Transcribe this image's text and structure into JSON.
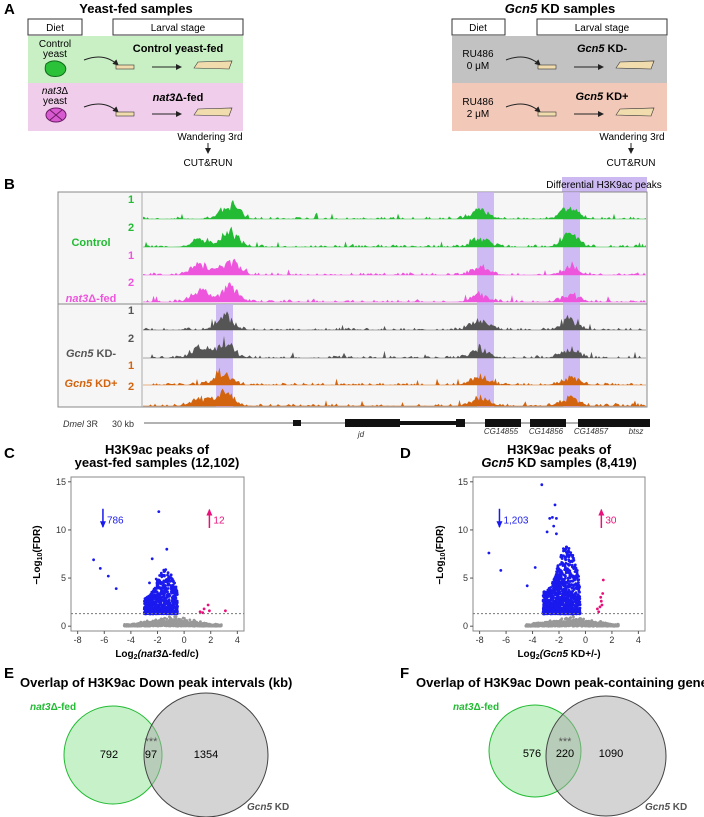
{
  "colors": {
    "control": "#22bb33",
    "nat3": "#ee55dd",
    "kdminus": "#555555",
    "kdplus": "#d2640f",
    "highlight": "#c8b0f2",
    "down": "#1a1aee",
    "up": "#e8107a",
    "ns": "#999999",
    "venn_green": "#bdeec0",
    "venn_gray": "#cccccc"
  },
  "panelA": {
    "letter": "A",
    "left": {
      "title": "Yeast-fed samples",
      "diet": "Diet",
      "stage": "Larval stage",
      "rows": [
        {
          "diet_l1": "Control",
          "diet_l2": "yeast",
          "label": "Control yeast-fed"
        },
        {
          "diet_l1_i": "nat3",
          "diet_l1_d": "Δ",
          "diet_l2": "yeast",
          "label_i": "nat3",
          "label_rest": "Δ-fed"
        }
      ],
      "wandering": "Wandering 3rd",
      "cutrun": "CUT&RUN"
    },
    "right": {
      "title_i": "Gcn5",
      "title_rest": " KD samples",
      "diet": "Diet",
      "stage": "Larval stage",
      "rows": [
        {
          "diet_l1": "RU486",
          "diet_l2": "0 μM",
          "label_i": "Gcn5",
          "label_rest": " KD-"
        },
        {
          "diet_l1": "RU486",
          "diet_l2": "2 μM",
          "label_i": "Gcn5",
          "label_rest": " KD+"
        }
      ],
      "wandering": "Wandering 3rd",
      "cutrun": "CUT&RUN"
    }
  },
  "panelB": {
    "letter": "B",
    "diff_label": "Differential H3K9ac peaks",
    "groups": [
      {
        "name": "Control"
      },
      {
        "name_i": "nat3",
        "name_rest": "Δ-fed"
      },
      {
        "name_i": "Gcn5",
        "name_rest": " KD-"
      },
      {
        "name_i": "Gcn5",
        "name_rest": " KD+"
      }
    ],
    "replicates": [
      "1",
      "2"
    ],
    "chrom_i": "Dmel",
    "chrom_rest": " 3R",
    "scale": "30 kb",
    "genes": [
      "jd",
      "CG14855",
      "CG14856",
      "CG14857",
      "btsz"
    ]
  },
  "chart_data": [
    {
      "type": "scatter",
      "letter": "C",
      "title_l1": "H3K9ac peaks of",
      "title_l2": "yeast-fed samples (12,102)",
      "xlabel_pre": "Log",
      "xlabel_sub": "2",
      "xlabel_i": "(nat3",
      "xlabel_rest": "Δ-fed/c)",
      "ylabel": "−Log10(FDR)",
      "xlim": [
        -8.5,
        4.5
      ],
      "ylim": [
        -0.5,
        15.5
      ],
      "xticks": [
        -8,
        -6,
        -4,
        -2,
        0,
        2,
        4
      ],
      "yticks": [
        0,
        5,
        10,
        15
      ],
      "fdr_threshold": 1.3,
      "down_count": "786",
      "up_count": "12",
      "outliers_down": [
        [
          -6.8,
          6.9
        ],
        [
          -6.3,
          6.0
        ],
        [
          -5.7,
          5.2
        ],
        [
          -5.1,
          3.9
        ],
        [
          -1.9,
          11.9
        ],
        [
          -1.3,
          8.0
        ],
        [
          -2.4,
          7.0
        ],
        [
          -2.6,
          4.5
        ],
        [
          -2.1,
          4.9
        ],
        [
          -1.7,
          5.3
        ]
      ],
      "outliers_up": [
        [
          1.2,
          1.5
        ],
        [
          1.5,
          1.8
        ],
        [
          1.8,
          2.2
        ],
        [
          1.4,
          1.4
        ],
        [
          1.9,
          1.6
        ],
        [
          3.1,
          1.6
        ]
      ],
      "down_cloud": {
        "n": 780,
        "xmin": -3.0,
        "xmax": -0.5,
        "ymax": 6.0
      },
      "ns_cloud": {
        "n": 900,
        "xmin": -4.5,
        "xmax": 2.8
      }
    },
    {
      "type": "scatter",
      "letter": "D",
      "title_l1": "H3K9ac peaks of",
      "title_l2_i": "Gcn5",
      "title_l2_rest": " KD samples (8,419)",
      "xlabel_pre": "Log",
      "xlabel_sub": "2",
      "xlabel_i": "(Gcn5",
      "xlabel_rest": " KD+/-)",
      "ylabel": "−Log10(FDR)",
      "xlim": [
        -8.5,
        4.5
      ],
      "ylim": [
        -0.5,
        15.5
      ],
      "xticks": [
        -8,
        -6,
        -4,
        -2,
        0,
        2,
        4
      ],
      "yticks": [
        0,
        5,
        10,
        15
      ],
      "fdr_threshold": 1.3,
      "down_count": "1,203",
      "up_count": "30",
      "outliers_down": [
        [
          -7.3,
          7.6
        ],
        [
          -6.4,
          5.8
        ],
        [
          -3.3,
          14.7
        ],
        [
          -2.3,
          12.6
        ],
        [
          -2.5,
          11.3
        ],
        [
          -2.7,
          11.2
        ],
        [
          -2.2,
          11.2
        ],
        [
          -2.4,
          10.4
        ],
        [
          -2.9,
          9.8
        ],
        [
          -2.2,
          9.6
        ],
        [
          -3.8,
          6.1
        ],
        [
          -4.4,
          4.2
        ]
      ],
      "outliers_up": [
        [
          1.0,
          1.5
        ],
        [
          1.1,
          2.0
        ],
        [
          1.2,
          2.6
        ],
        [
          1.3,
          3.4
        ],
        [
          1.35,
          4.8
        ],
        [
          0.9,
          1.8
        ],
        [
          1.15,
          3.0
        ],
        [
          1.25,
          2.2
        ]
      ],
      "down_cloud": {
        "n": 1190,
        "xmin": -3.2,
        "xmax": -0.4,
        "ymax": 8.5
      },
      "ns_cloud": {
        "n": 900,
        "xmin": -4.5,
        "xmax": 2.5
      }
    }
  ],
  "panelE": {
    "letter": "E",
    "title": "Overlap of H3K9ac Down peak intervals (kb)",
    "a_i": "nat3",
    "a_rest": "Δ-fed",
    "b_i": "Gcn5",
    "b_rest": " KD",
    "only_a": "792",
    "both": "97",
    "only_b": "1354",
    "sig": "***"
  },
  "panelF": {
    "letter": "F",
    "title": "Overlap of H3K9ac Down peak-containing genes",
    "a_i": "nat3",
    "a_rest": "Δ-fed",
    "b_i": "Gcn5",
    "b_rest": " KD",
    "only_a": "576",
    "both": "220",
    "only_b": "1090",
    "sig": "***"
  }
}
